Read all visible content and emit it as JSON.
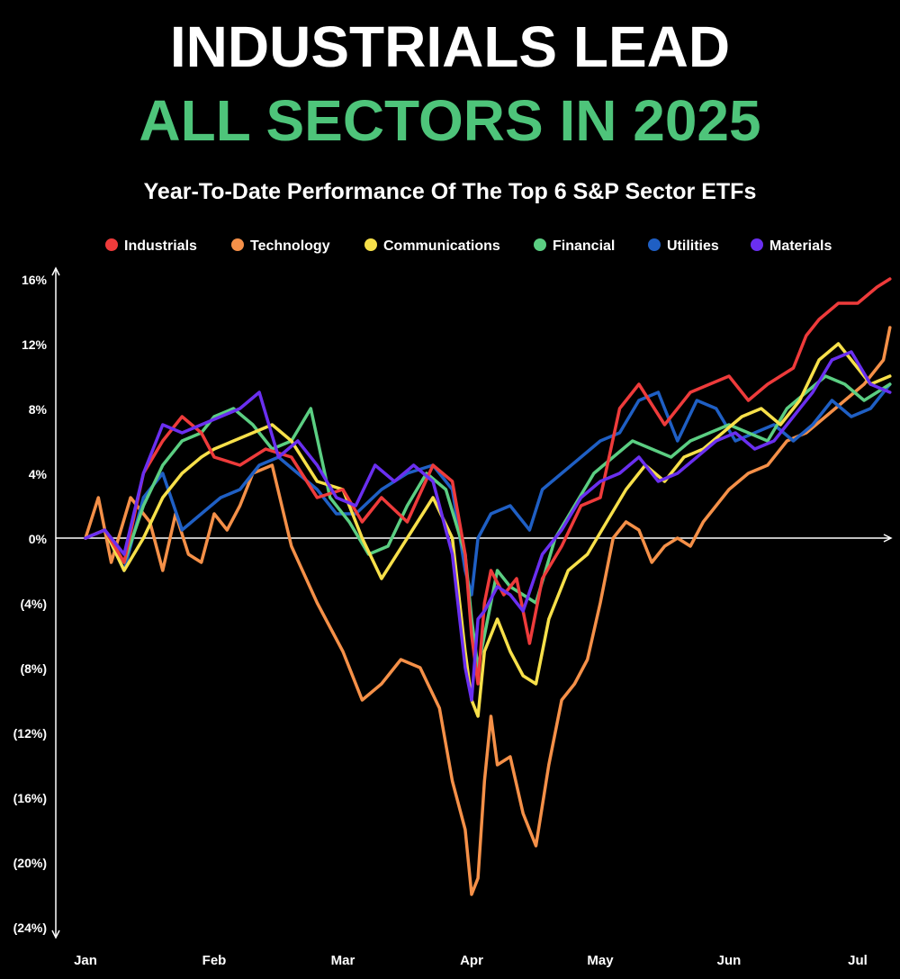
{
  "chart_data": {
    "type": "line",
    "title_line1": "INDUSTRIALS LEAD",
    "title_line2": "ALL SECTORS IN 2025",
    "subtitle": "Year-To-Date Performance Of The Top 6 S&P Sector ETFs",
    "colors": {
      "background": "#000000",
      "title": "#ffffff",
      "title_accent": "#4ec47a",
      "axis": "#ffffff"
    },
    "legend_position": "top",
    "grid": false,
    "x_ticks": [
      "Jan",
      "Feb",
      "Mar",
      "Apr",
      "May",
      "Jun",
      "Jul"
    ],
    "xlim": [
      0,
      6.35
    ],
    "y_ticks": [
      16,
      12,
      8,
      4,
      0,
      -4,
      -8,
      -12,
      -16,
      -20,
      -24
    ],
    "y_tick_labels": [
      "16%",
      "12%",
      "8%",
      "4%",
      "0%",
      "(4%)",
      "(8%)",
      "(12%)",
      "(16%)",
      "(20%)",
      "(24%)"
    ],
    "ylim": [
      -24,
      16
    ],
    "series": [
      {
        "name": "Industrials",
        "color": "#ee3b3b",
        "x": [
          0,
          0.15,
          0.3,
          0.45,
          0.6,
          0.75,
          0.9,
          1.0,
          1.2,
          1.4,
          1.6,
          1.8,
          2.0,
          2.15,
          2.3,
          2.5,
          2.7,
          2.85,
          2.95,
          3.0,
          3.05,
          3.1,
          3.15,
          3.25,
          3.35,
          3.45,
          3.55,
          3.7,
          3.85,
          4.0,
          4.15,
          4.3,
          4.5,
          4.7,
          4.85,
          5.0,
          5.15,
          5.3,
          5.5,
          5.6,
          5.7,
          5.85,
          6.0,
          6.15,
          6.25
        ],
        "values": [
          0,
          0.5,
          -1.5,
          4,
          6,
          7.5,
          6.5,
          5,
          4.5,
          5.5,
          5,
          2.5,
          3,
          1,
          2.5,
          1,
          4.5,
          3.5,
          -1,
          -6,
          -9,
          -4,
          -2,
          -3.5,
          -2.5,
          -6.5,
          -2.5,
          -0.5,
          2,
          2.5,
          8,
          9.5,
          7,
          9,
          9.5,
          10,
          8.5,
          9.5,
          10.5,
          12.5,
          13.5,
          14.5,
          14.5,
          15.5,
          16
        ]
      },
      {
        "name": "Technology",
        "color": "#f59048",
        "x": [
          0,
          0.1,
          0.2,
          0.35,
          0.5,
          0.6,
          0.7,
          0.8,
          0.9,
          1.0,
          1.1,
          1.2,
          1.3,
          1.45,
          1.6,
          1.8,
          2.0,
          2.15,
          2.3,
          2.45,
          2.6,
          2.75,
          2.85,
          2.95,
          3.0,
          3.05,
          3.1,
          3.15,
          3.2,
          3.3,
          3.4,
          3.5,
          3.6,
          3.7,
          3.8,
          3.9,
          4.0,
          4.1,
          4.2,
          4.3,
          4.4,
          4.5,
          4.6,
          4.7,
          4.8,
          4.9,
          5.0,
          5.15,
          5.3,
          5.45,
          5.6,
          5.75,
          5.9,
          6.05,
          6.2,
          6.25
        ],
        "values": [
          0,
          2.5,
          -1.5,
          2.5,
          1,
          -2,
          1.5,
          -1,
          -1.5,
          1.5,
          0.5,
          2,
          4,
          4.5,
          -0.5,
          -4,
          -7,
          -10,
          -9,
          -7.5,
          -8,
          -10.5,
          -15,
          -18,
          -22,
          -21,
          -15,
          -11,
          -14,
          -13.5,
          -17,
          -19,
          -14,
          -10,
          -9,
          -7.5,
          -4,
          0,
          1,
          0.5,
          -1.5,
          -0.5,
          0,
          -0.5,
          1,
          2,
          3,
          4,
          4.5,
          6,
          6.5,
          7.5,
          8.5,
          9.5,
          11,
          13
        ]
      },
      {
        "name": "Communications",
        "color": "#f7e04a",
        "x": [
          0,
          0.15,
          0.3,
          0.45,
          0.6,
          0.75,
          0.9,
          1.0,
          1.15,
          1.3,
          1.45,
          1.6,
          1.8,
          2.0,
          2.15,
          2.3,
          2.5,
          2.7,
          2.85,
          2.95,
          3.0,
          3.05,
          3.1,
          3.2,
          3.3,
          3.4,
          3.5,
          3.6,
          3.75,
          3.9,
          4.05,
          4.2,
          4.35,
          4.5,
          4.65,
          4.8,
          4.95,
          5.1,
          5.25,
          5.4,
          5.55,
          5.7,
          5.85,
          6.0,
          6.1,
          6.25
        ],
        "values": [
          0,
          0.5,
          -2,
          0,
          2.5,
          4,
          5,
          5.5,
          6,
          6.5,
          7,
          6,
          3.5,
          3,
          0,
          -2.5,
          0,
          2.5,
          0,
          -7,
          -10,
          -11,
          -7,
          -5,
          -7,
          -8.5,
          -9,
          -5,
          -2,
          -1,
          1,
          3,
          4.5,
          3.5,
          5,
          5.5,
          6.5,
          7.5,
          8,
          7,
          8.5,
          11,
          12,
          10.5,
          9.5,
          10
        ]
      },
      {
        "name": "Financial",
        "color": "#5bce82",
        "x": [
          0,
          0.15,
          0.3,
          0.45,
          0.6,
          0.75,
          0.9,
          1.0,
          1.15,
          1.3,
          1.45,
          1.6,
          1.75,
          1.9,
          2.05,
          2.2,
          2.35,
          2.5,
          2.65,
          2.8,
          2.95,
          3.0,
          3.05,
          3.1,
          3.2,
          3.3,
          3.4,
          3.5,
          3.65,
          3.8,
          3.95,
          4.1,
          4.25,
          4.4,
          4.55,
          4.7,
          4.85,
          5.0,
          5.15,
          5.3,
          5.45,
          5.6,
          5.75,
          5.9,
          6.05,
          6.25
        ],
        "values": [
          0,
          0.5,
          -1.5,
          2,
          4.5,
          6,
          6.5,
          7.5,
          8,
          7,
          5.5,
          6,
          8,
          2.5,
          1,
          -1,
          -0.5,
          2,
          4,
          3,
          -1,
          -5,
          -8,
          -6,
          -2,
          -3,
          -3.5,
          -4,
          0,
          2,
          4,
          5,
          6,
          5.5,
          5,
          6,
          6.5,
          7,
          6.5,
          6,
          8,
          9,
          10,
          9.5,
          8.5,
          9.5
        ]
      },
      {
        "name": "Utilities",
        "color": "#1f5fc4",
        "x": [
          0,
          0.15,
          0.3,
          0.45,
          0.6,
          0.75,
          0.9,
          1.05,
          1.2,
          1.35,
          1.5,
          1.65,
          1.8,
          1.95,
          2.1,
          2.3,
          2.5,
          2.7,
          2.85,
          2.95,
          3.0,
          3.05,
          3.15,
          3.3,
          3.45,
          3.55,
          3.7,
          3.85,
          4.0,
          4.15,
          4.3,
          4.45,
          4.6,
          4.75,
          4.9,
          5.05,
          5.2,
          5.35,
          5.5,
          5.65,
          5.8,
          5.95,
          6.1,
          6.25
        ],
        "values": [
          0,
          0.5,
          -2,
          2.5,
          4,
          0.5,
          1.5,
          2.5,
          3,
          4.5,
          5,
          4,
          3,
          1.5,
          1.5,
          3,
          4,
          4.5,
          3,
          -2,
          -3.5,
          0,
          1.5,
          2,
          0.5,
          3,
          4,
          5,
          6,
          6.5,
          8.5,
          9,
          6,
          8.5,
          8,
          6,
          6.5,
          7,
          6,
          7,
          8.5,
          7.5,
          8,
          9.5
        ]
      },
      {
        "name": "Materials",
        "color": "#6a2ff0",
        "x": [
          0,
          0.15,
          0.3,
          0.45,
          0.6,
          0.75,
          0.9,
          1.05,
          1.2,
          1.35,
          1.5,
          1.65,
          1.8,
          1.95,
          2.1,
          2.25,
          2.4,
          2.55,
          2.7,
          2.85,
          2.95,
          3.0,
          3.05,
          3.1,
          3.2,
          3.3,
          3.4,
          3.55,
          3.7,
          3.85,
          4.0,
          4.15,
          4.3,
          4.45,
          4.6,
          4.75,
          4.9,
          5.05,
          5.2,
          5.35,
          5.5,
          5.65,
          5.8,
          5.95,
          6.1,
          6.25
        ],
        "values": [
          0,
          0.5,
          -1,
          4,
          7,
          6.5,
          7,
          7.5,
          8,
          9,
          5,
          6,
          4.5,
          2.5,
          2,
          4.5,
          3.5,
          4.5,
          3.5,
          -1,
          -8,
          -10,
          -5,
          -4.5,
          -3,
          -3.5,
          -4.5,
          -1,
          0.5,
          2.5,
          3.5,
          4,
          5,
          3.5,
          4,
          5,
          6,
          6.5,
          5.5,
          6,
          7.5,
          9,
          11,
          11.5,
          9.5,
          9
        ]
      }
    ]
  }
}
